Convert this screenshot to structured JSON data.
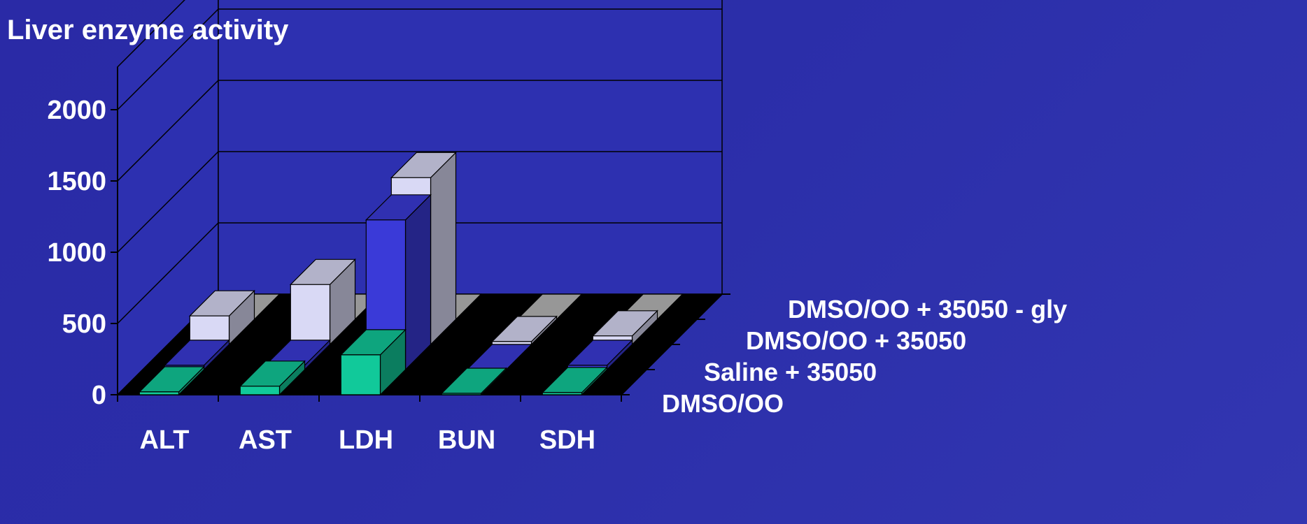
{
  "chart_data": {
    "type": "bar",
    "title": "Liver enzyme activity",
    "categories": [
      "ALT",
      "AST",
      "LDH",
      "BUN",
      "SDH"
    ],
    "series": [
      {
        "name": "DMSO/OO",
        "values": [
          20,
          60,
          280,
          10,
          15
        ],
        "color": "#11c99a"
      },
      {
        "name": "Saline + 35050",
        "values": [
          30,
          30,
          1050,
          0,
          30
        ],
        "color": "#3a3ad8"
      },
      {
        "name": "DMSO/OO + 35050",
        "values": [
          200,
          420,
          1170,
          20,
          60
        ],
        "color": "#d9d9f5"
      },
      {
        "name": "DMSO/OO + 35050 - gly",
        "values": [
          0,
          0,
          0,
          0,
          0
        ],
        "color": "#b8b8b8"
      }
    ],
    "yticks": [
      0,
      500,
      1000,
      1500,
      2000
    ],
    "ylim": [
      0,
      2300
    ],
    "grid": true,
    "wall_color": "#2d30b0",
    "floor_color": "#000000",
    "line_color": "#000000"
  }
}
